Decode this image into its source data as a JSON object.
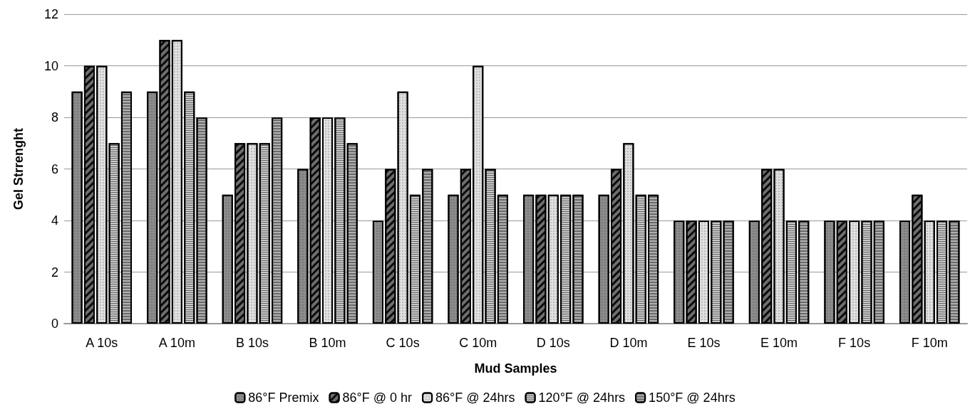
{
  "chart_data": {
    "type": "bar",
    "xlabel": "Mud Samples",
    "ylabel": "Gel Strrenght",
    "categories": [
      "A 10s",
      "A 10m",
      "B 10s",
      "B 10m",
      "C 10s",
      "C 10m",
      "D 10s",
      "D 10m",
      "E 10s",
      "E 10m",
      "F 10s",
      "F 10m"
    ],
    "series": [
      {
        "name": "86°F Premix",
        "color": "#8c8c8c",
        "values": [
          9,
          9,
          5,
          6,
          4,
          5,
          5,
          5,
          4,
          4,
          4,
          4
        ]
      },
      {
        "name": "86°F @ 0 hr",
        "color": "#6e6e6e",
        "values": [
          10,
          11,
          7,
          8,
          6,
          6,
          5,
          6,
          4,
          6,
          4,
          5
        ]
      },
      {
        "name": "86°F @ 24hrs",
        "color": "#e0e0e0",
        "values": [
          10,
          11,
          7,
          8,
          9,
          10,
          5,
          7,
          4,
          6,
          4,
          4
        ]
      },
      {
        "name": "120°F @ 24hrs",
        "color": "#c8c8c8",
        "values": [
          7,
          9,
          7,
          8,
          5,
          6,
          5,
          5,
          4,
          4,
          4,
          4
        ]
      },
      {
        "name": "150°F @ 24hrs",
        "color": "#b0b0b0",
        "values": [
          9,
          8,
          8,
          7,
          6,
          5,
          5,
          5,
          4,
          4,
          4,
          4
        ]
      }
    ],
    "ylim": [
      0,
      12
    ],
    "yticks": [
      0,
      2,
      4,
      6,
      8,
      10,
      12
    ],
    "grid": "y",
    "legend": "bottom"
  }
}
